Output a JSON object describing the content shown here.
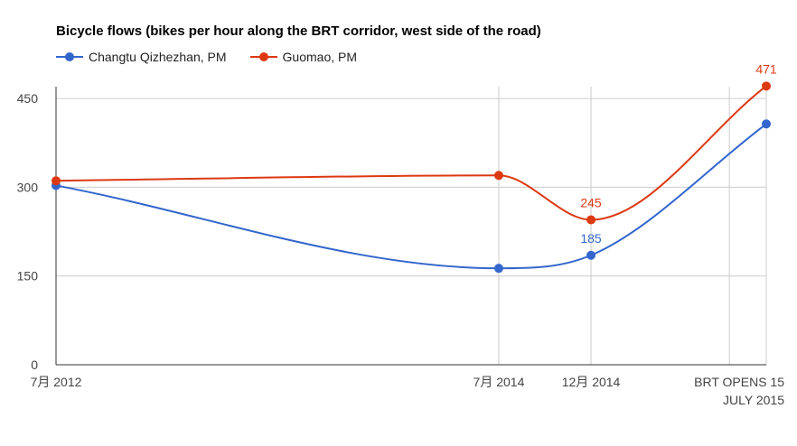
{
  "chart_data": {
    "type": "line",
    "title": "Bicycle flows (bikes per hour along the BRT corridor, west side of the road)",
    "xlabel": "",
    "ylabel": "",
    "ylim": [
      0,
      470
    ],
    "y_ticks": [
      0,
      150,
      300,
      450
    ],
    "y_tick_labels": [
      "0",
      "150",
      "300",
      "450"
    ],
    "categories": [
      "7月 2012",
      "7月 2014",
      "12月 2014",
      "BRT OPENS 15 JULY 2015"
    ],
    "category_label_lines": [
      [
        "7月 2012"
      ],
      [
        "7月 2014"
      ],
      [
        "12月 2014"
      ],
      [
        "BRT OPENS 15",
        "JULY 2015"
      ]
    ],
    "x_positions": [
      0,
      24,
      29,
      38.5
    ],
    "x_range": [
      0,
      38.5
    ],
    "extra_gridlines_x": [
      36.5
    ],
    "series": [
      {
        "name": "Changtu Qizhezhan, PM",
        "color": "#3366cc",
        "values": [
          303,
          163,
          185,
          407
        ],
        "data_labels": [
          null,
          null,
          "185",
          null
        ]
      },
      {
        "name": "Guomao, PM",
        "color": "#dc3912",
        "values": [
          311,
          320,
          245,
          471
        ],
        "data_labels": [
          null,
          null,
          "245",
          "471"
        ]
      }
    ],
    "legend_position": "top-left",
    "grid": true
  }
}
